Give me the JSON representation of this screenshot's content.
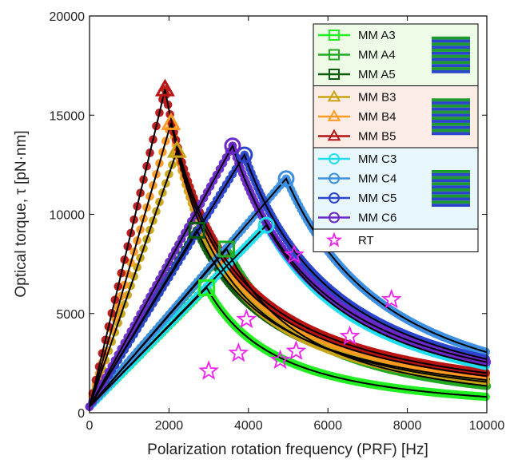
{
  "chart_data": {
    "type": "line",
    "xlabel": "Polarization rotation frequency (PRF) [Hz]",
    "ylabel": "Optical torque, τ [pN·nm]",
    "xlim": [
      0,
      10000
    ],
    "ylim": [
      0,
      20000
    ],
    "xticks": [
      "0",
      "2000",
      "4000",
      "6000",
      "8000",
      "10000"
    ],
    "yticks": [
      "0",
      "5000",
      "10000",
      "15000",
      "20000"
    ],
    "grid": false,
    "legend_position": "top-right",
    "series": [
      {
        "name": "MM A3",
        "color": "#22ee22",
        "marker": "square",
        "group": "A",
        "peak": [
          2950,
          6300
        ],
        "tail_end": 800
      },
      {
        "name": "MM A4",
        "color": "#22aa22",
        "marker": "square",
        "group": "A",
        "peak": [
          3450,
          8250
        ],
        "tail_end": 1350
      },
      {
        "name": "MM A5",
        "color": "#0d5c0d",
        "marker": "square",
        "group": "A",
        "peak": [
          2700,
          9200
        ],
        "tail_end": 1650
      },
      {
        "name": "MM B3",
        "color": "#c8a415",
        "marker": "triangle",
        "group": "B",
        "peak": [
          2200,
          13200
        ],
        "tail_end": 1550
      },
      {
        "name": "MM B4",
        "color": "#ff9a22",
        "marker": "triangle",
        "group": "B",
        "peak": [
          2050,
          14600
        ],
        "tail_end": 1850
      },
      {
        "name": "MM B5",
        "color": "#b81414",
        "marker": "triangle",
        "group": "B",
        "peak": [
          1900,
          16300
        ],
        "tail_end": 2000
      },
      {
        "name": "MM C3",
        "color": "#22ddee",
        "marker": "circle",
        "group": "C",
        "peak": [
          4450,
          9450
        ],
        "tail_end": 2350
      },
      {
        "name": "MM C4",
        "color": "#3d8fe0",
        "marker": "circle",
        "group": "C",
        "peak": [
          4950,
          11800
        ],
        "tail_end": 3050
      },
      {
        "name": "MM C5",
        "color": "#2a45cc",
        "marker": "circle",
        "group": "C",
        "peak": [
          3900,
          13000
        ],
        "tail_end": 2700
      },
      {
        "name": "MM C6",
        "color": "#6a28c8",
        "marker": "circle",
        "group": "C",
        "peak": [
          3600,
          13450
        ],
        "tail_end": 2550
      }
    ],
    "rt": {
      "name": "RT",
      "color": "#ee22ee",
      "marker": "star",
      "points": [
        [
          3000,
          2100
        ],
        [
          3750,
          3000
        ],
        [
          3950,
          4700
        ],
        [
          4800,
          2650
        ],
        [
          5200,
          3100
        ],
        [
          5150,
          7950
        ],
        [
          6550,
          3850
        ],
        [
          7600,
          5700
        ]
      ]
    },
    "legend_groups": [
      {
        "group": "A",
        "background": "#eefbe6",
        "stripe_colors": [
          "#1f9a2e",
          "#2a45cc"
        ]
      },
      {
        "group": "B",
        "background": "#fbece6",
        "stripe_colors": [
          "#1f9a2e",
          "#2a45cc"
        ]
      },
      {
        "group": "C",
        "background": "#e8f7fb",
        "stripe_colors": [
          "#1f9a2e",
          "#2a45cc"
        ]
      }
    ]
  }
}
